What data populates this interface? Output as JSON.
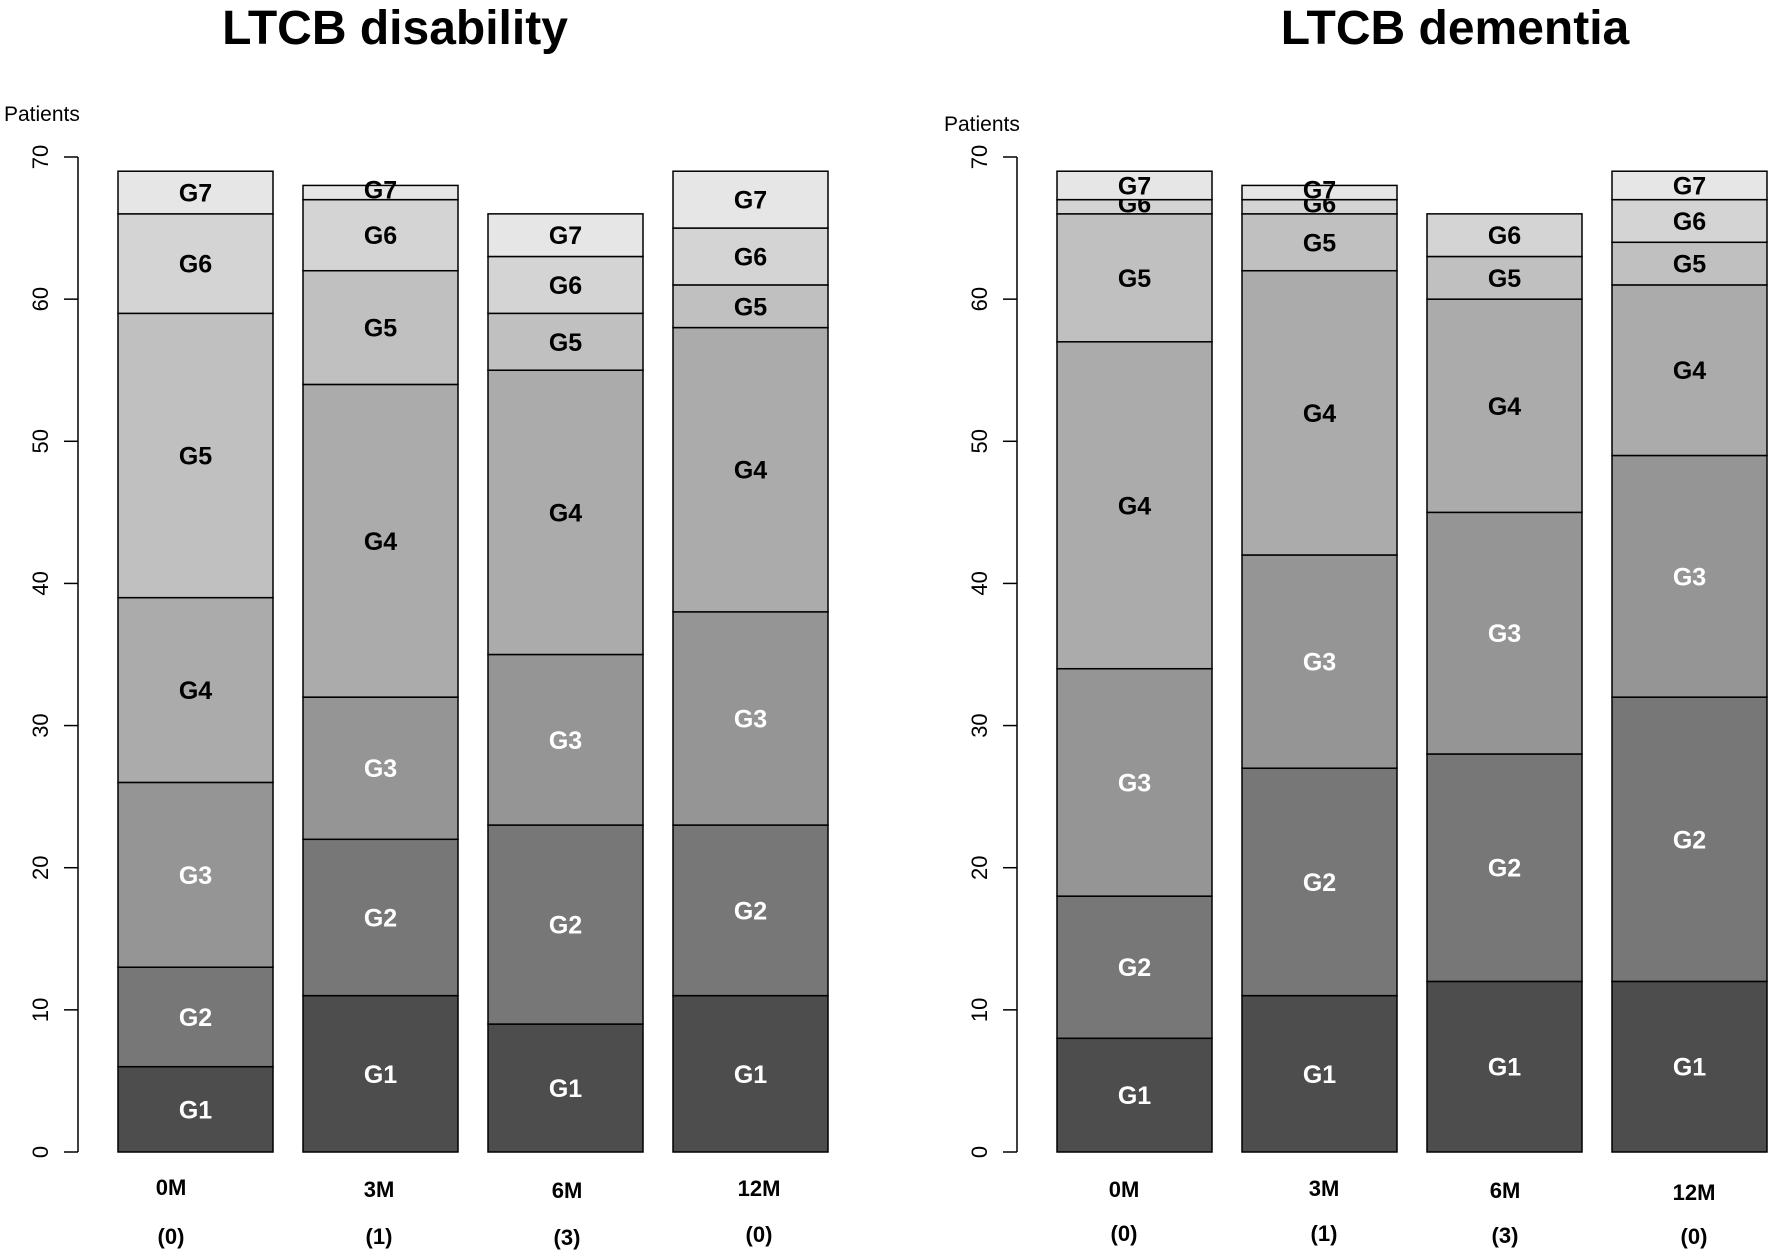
{
  "chart_data": [
    {
      "type": "bar",
      "stacked": true,
      "title": "LTCB disability",
      "ylabel": "Patients",
      "ylim": [
        0,
        70
      ],
      "yticks": [
        0,
        10,
        20,
        30,
        40,
        50,
        60,
        70
      ],
      "categories": [
        "0M",
        "3M",
        "6M",
        "12M"
      ],
      "sublabels": [
        "(0)",
        "(1)",
        "(3)",
        "(0)"
      ],
      "series": [
        {
          "name": "G1",
          "values": [
            6,
            11,
            9,
            11
          ]
        },
        {
          "name": "G2",
          "values": [
            7,
            11,
            14,
            12
          ]
        },
        {
          "name": "G3",
          "values": [
            13,
            10,
            12,
            15
          ]
        },
        {
          "name": "G4",
          "values": [
            13,
            22,
            20,
            20
          ]
        },
        {
          "name": "G5",
          "values": [
            20,
            8,
            4,
            3
          ]
        },
        {
          "name": "G6",
          "values": [
            7,
            5,
            4,
            4
          ]
        },
        {
          "name": "G7",
          "values": [
            3,
            1,
            3,
            4
          ]
        }
      ]
    },
    {
      "type": "bar",
      "stacked": true,
      "title": "LTCB dementia",
      "ylabel": "Patients",
      "ylim": [
        0,
        70
      ],
      "yticks": [
        0,
        10,
        20,
        30,
        40,
        50,
        60,
        70
      ],
      "categories": [
        "0M",
        "3M",
        "6M",
        "12M"
      ],
      "sublabels": [
        "(0)",
        "(1)",
        "(3)",
        "(0)"
      ],
      "series": [
        {
          "name": "G1",
          "values": [
            8,
            11,
            12,
            12
          ]
        },
        {
          "name": "G2",
          "values": [
            10,
            16,
            16,
            20
          ]
        },
        {
          "name": "G3",
          "values": [
            16,
            15,
            17,
            17
          ]
        },
        {
          "name": "G4",
          "values": [
            23,
            20,
            15,
            12
          ]
        },
        {
          "name": "G5",
          "values": [
            9,
            4,
            3,
            3
          ]
        },
        {
          "name": "G6",
          "values": [
            1,
            1,
            3,
            3
          ]
        },
        {
          "name": "G7",
          "values": [
            2,
            1,
            0,
            2
          ]
        }
      ]
    }
  ],
  "colors": {
    "G1": "#4d4d4d",
    "G2": "#777777",
    "G3": "#959595",
    "G4": "#ababab",
    "G5": "#c0c0c0",
    "G6": "#d4d4d4",
    "G7": "#e6e6e6",
    "label_light": "#ffffff",
    "label_dark": "#000000"
  }
}
